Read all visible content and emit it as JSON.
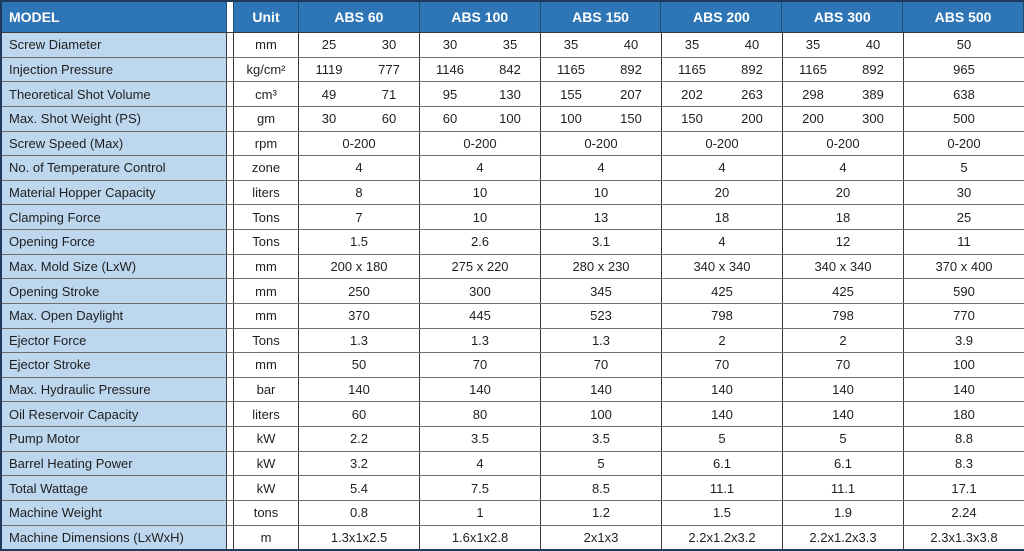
{
  "table": {
    "model_header": "MODEL",
    "unit_header": "Unit",
    "model_headers": [
      "ABS 60",
      "ABS 100",
      "ABS 150",
      "ABS 200",
      "ABS 300",
      "ABS 500"
    ],
    "rows": [
      {
        "label": "Screw Diameter",
        "unit": "mm",
        "values": [
          [
            "25",
            "30"
          ],
          [
            "30",
            "35"
          ],
          [
            "35",
            "40"
          ],
          [
            "35",
            "40"
          ],
          [
            "35",
            "40"
          ],
          "50"
        ]
      },
      {
        "label": "Injection Pressure",
        "unit": "kg/cm²",
        "values": [
          [
            "1119",
            "777"
          ],
          [
            "1146",
            "842"
          ],
          [
            "1165",
            "892"
          ],
          [
            "1165",
            "892"
          ],
          [
            "1165",
            "892"
          ],
          "965"
        ]
      },
      {
        "label": "Theoretical Shot Volume",
        "unit": "cm³",
        "values": [
          [
            "49",
            "71"
          ],
          [
            "95",
            "130"
          ],
          [
            "155",
            "207"
          ],
          [
            "202",
            "263"
          ],
          [
            "298",
            "389"
          ],
          "638"
        ]
      },
      {
        "label": "Max. Shot Weight (PS)",
        "unit": "gm",
        "values": [
          [
            "30",
            "60"
          ],
          [
            "60",
            "100"
          ],
          [
            "100",
            "150"
          ],
          [
            "150",
            "200"
          ],
          [
            "200",
            "300"
          ],
          "500"
        ]
      },
      {
        "label": "Screw Speed (Max)",
        "unit": "rpm",
        "values": [
          "0-200",
          "0-200",
          "0-200",
          "0-200",
          "0-200",
          "0-200"
        ]
      },
      {
        "label": "No. of Temperature Control",
        "unit": "zone",
        "values": [
          "4",
          "4",
          "4",
          "4",
          "4",
          "5"
        ]
      },
      {
        "label": "Material Hopper Capacity",
        "unit": "liters",
        "values": [
          "8",
          "10",
          "10",
          "20",
          "20",
          "30"
        ]
      },
      {
        "label": "Clamping Force",
        "unit": "Tons",
        "values": [
          "7",
          "10",
          "13",
          "18",
          "18",
          "25"
        ]
      },
      {
        "label": "Opening Force",
        "unit": "Tons",
        "values": [
          "1.5",
          "2.6",
          "3.1",
          "4",
          "12",
          "11"
        ]
      },
      {
        "label": "Max. Mold Size (LxW)",
        "unit": "mm",
        "values": [
          "200 x 180",
          "275 x 220",
          "280 x 230",
          "340 x 340",
          "340 x 340",
          "370 x 400"
        ]
      },
      {
        "label": "Opening Stroke",
        "unit": "mm",
        "values": [
          "250",
          "300",
          "345",
          "425",
          "425",
          "590"
        ]
      },
      {
        "label": "Max. Open Daylight",
        "unit": "mm",
        "values": [
          "370",
          "445",
          "523",
          "798",
          "798",
          "770"
        ]
      },
      {
        "label": "Ejector Force",
        "unit": "Tons",
        "values": [
          "1.3",
          "1.3",
          "1.3",
          "2",
          "2",
          "3.9"
        ]
      },
      {
        "label": "Ejector Stroke",
        "unit": "mm",
        "values": [
          "50",
          "70",
          "70",
          "70",
          "70",
          "100"
        ]
      },
      {
        "label": "Max. Hydraulic Pressure",
        "unit": "bar",
        "values": [
          "140",
          "140",
          "140",
          "140",
          "140",
          "140"
        ]
      },
      {
        "label": "Oil Reservoir Capacity",
        "unit": "liters",
        "values": [
          "60",
          "80",
          "100",
          "140",
          "140",
          "180"
        ]
      },
      {
        "label": "Pump Motor",
        "unit": "kW",
        "values": [
          "2.2",
          "3.5",
          "3.5",
          "5",
          "5",
          "8.8"
        ]
      },
      {
        "label": "Barrel Heating Power",
        "unit": "kW",
        "values": [
          "3.2",
          "4",
          "5",
          "6.1",
          "6.1",
          "8.3"
        ]
      },
      {
        "label": "Total Wattage",
        "unit": "kW",
        "values": [
          "5.4",
          "7.5",
          "8.5",
          "11.1",
          "11.1",
          "17.1"
        ]
      },
      {
        "label": "Machine Weight",
        "unit": "tons",
        "values": [
          "0.8",
          "1",
          "1.2",
          "1.5",
          "1.9",
          "2.24"
        ]
      },
      {
        "label": "Machine Dimensions (LxWxH)",
        "unit": "m",
        "values": [
          "1.3x1x2.5",
          "1.6x1x2.8",
          "2x1x3",
          "2.2x1.2x3.2",
          "2.2x1.2x3.3",
          "2.3x1.3x3.8"
        ]
      }
    ],
    "colors": {
      "header_bg": "#2E75B6",
      "header_text": "#FFFFFF",
      "label_bg": "#BDD7EE",
      "body_bg": "#FFFFFF",
      "grid_line": "#6E6E6E",
      "column_line": "#3B3B3B",
      "outer_border": "#1F3B5C",
      "text": "#1F1F1F"
    }
  }
}
